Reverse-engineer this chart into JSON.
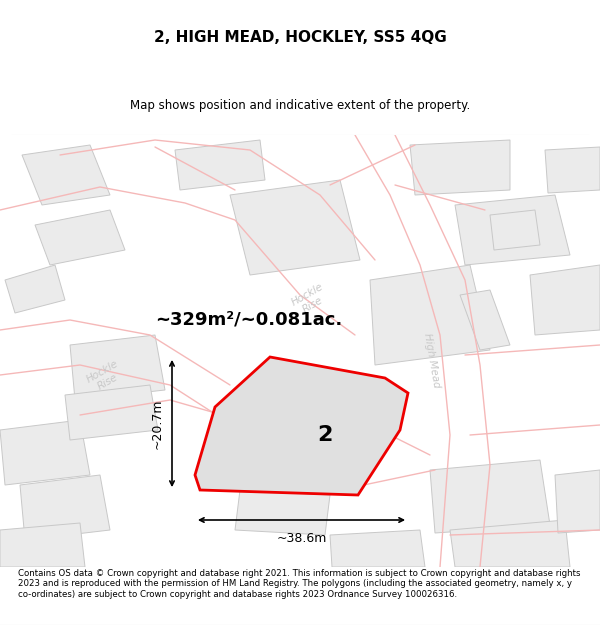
{
  "title": "2, HIGH MEAD, HOCKLEY, SS5 4QG",
  "subtitle": "Map shows position and indicative extent of the property.",
  "area_text": "~329m²/~0.081ac.",
  "label_number": "2",
  "dim_width": "~38.6m",
  "dim_height": "~20.7m",
  "footer": "Contains OS data © Crown copyright and database right 2021. This information is subject to Crown copyright and database rights 2023 and is reproduced with the permission of HM Land Registry. The polygons (including the associated geometry, namely x, y co-ordinates) are subject to Crown copyright and database rights 2023 Ordnance Survey 100026316.",
  "map_bg": "#ffffff",
  "building_fill": "#ebebeb",
  "building_edge": "#c8c8c8",
  "road_line_color": "#f5b8b8",
  "property_fill": "#e0e0e0",
  "property_edge": "#ee0000",
  "title_color": "#000000",
  "footer_color": "#000000",
  "road_label_color": "#c8c8c8",
  "dim_line_color": "#000000"
}
